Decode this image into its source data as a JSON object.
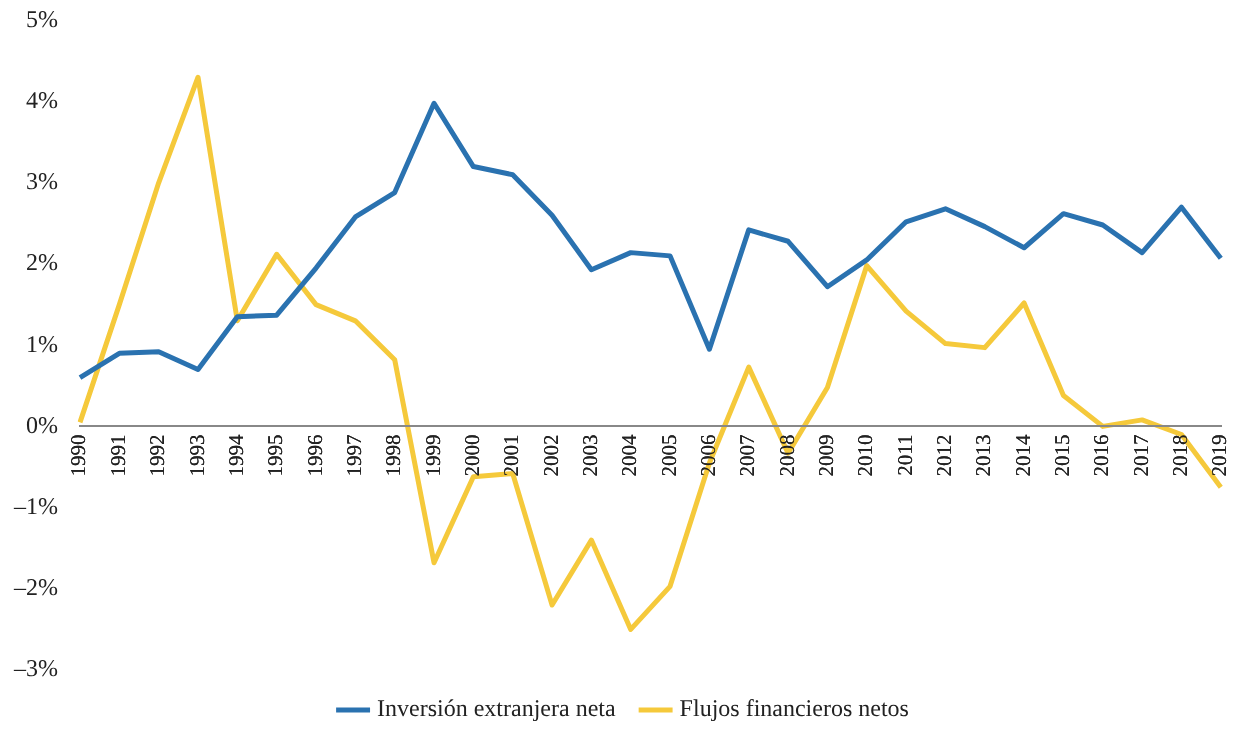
{
  "chart_data": {
    "type": "line",
    "categories": [
      "1990",
      "1991",
      "1992",
      "1993",
      "1994",
      "1995",
      "1996",
      "1997",
      "1998",
      "1999",
      "2000",
      "2001",
      "2002",
      "2003",
      "2004",
      "2005",
      "2006",
      "2007",
      "2008",
      "2009",
      "2010",
      "2011",
      "2012",
      "2013",
      "2014",
      "2015",
      "2016",
      "2017",
      "2018",
      "2019"
    ],
    "series": [
      {
        "name": "Inversión extranjera neta",
        "color": "#2a72b0",
        "values": [
          0.6,
          0.9,
          0.92,
          0.7,
          1.35,
          1.37,
          1.95,
          2.58,
          2.88,
          3.98,
          3.2,
          3.1,
          2.6,
          1.93,
          2.14,
          2.1,
          0.95,
          2.42,
          2.28,
          1.72,
          2.05,
          2.52,
          2.68,
          2.46,
          2.2,
          2.62,
          2.48,
          2.14,
          2.7,
          2.07
        ]
      },
      {
        "name": "Flujos financieros netos",
        "color": "#f5c93b",
        "values": [
          0.05,
          1.5,
          3.0,
          4.3,
          1.3,
          2.12,
          1.5,
          1.3,
          0.82,
          -1.68,
          -0.62,
          -0.58,
          -2.2,
          -1.4,
          -2.5,
          -1.97,
          -0.45,
          0.73,
          -0.33,
          0.48,
          1.98,
          1.42,
          1.02,
          0.97,
          1.52,
          0.38,
          0.0,
          0.08,
          -0.1,
          -0.75
        ]
      }
    ],
    "ylim": [
      -3,
      5
    ],
    "yticks": [
      {
        "value": -3,
        "label": "–3%"
      },
      {
        "value": -2,
        "label": "–2%"
      },
      {
        "value": -1,
        "label": "–1%"
      },
      {
        "value": 0,
        "label": "0%"
      },
      {
        "value": 1,
        "label": "1%"
      },
      {
        "value": 2,
        "label": "2%"
      },
      {
        "value": 3,
        "label": "3%"
      },
      {
        "value": 4,
        "label": "4%"
      },
      {
        "value": 5,
        "label": "5%"
      }
    ],
    "grid": false,
    "legend": "bottom",
    "marker": "none",
    "line_style": "solid"
  }
}
